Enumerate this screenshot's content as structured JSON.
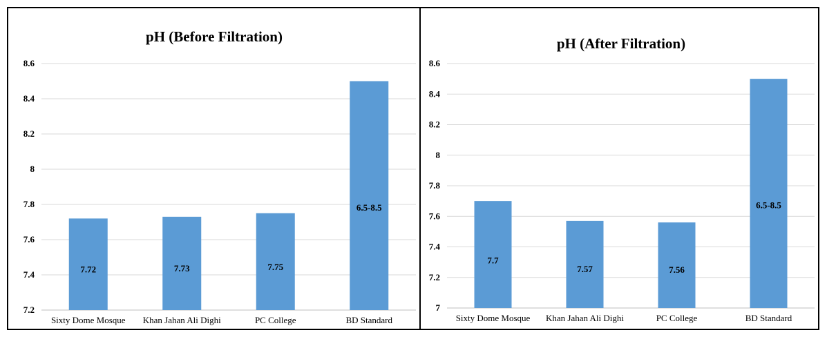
{
  "chart_data": [
    {
      "type": "bar",
      "title": "pH (Before Filtration)",
      "categories": [
        "Sixty Dome Mosque",
        "Khan Jahan Ali Dighi",
        "PC College",
        "BD Standard"
      ],
      "values": [
        7.72,
        7.73,
        7.75,
        8.5
      ],
      "data_labels": [
        "7.72",
        "7.73",
        "7.75",
        "6.5-8.5"
      ],
      "ylim": [
        7.2,
        8.6
      ],
      "yticks": [
        7.2,
        7.4,
        7.6,
        7.8,
        8,
        8.2,
        8.4,
        8.6
      ],
      "grid": true,
      "color": "#5b9bd5"
    },
    {
      "type": "bar",
      "title": "pH (After Filtration)",
      "categories": [
        "Sixty Dome Mosque",
        "Khan Jahan Ali Dighi",
        "PC College",
        "BD Standard"
      ],
      "values": [
        7.7,
        7.57,
        7.56,
        8.5
      ],
      "data_labels": [
        "7.7",
        "7.57",
        "7.56",
        "6.5-8.5"
      ],
      "ylim": [
        7.0,
        8.6
      ],
      "yticks": [
        7,
        7.2,
        7.4,
        7.6,
        7.8,
        8,
        8.2,
        8.4,
        8.6
      ],
      "grid": true,
      "color": "#5b9bd5"
    }
  ]
}
